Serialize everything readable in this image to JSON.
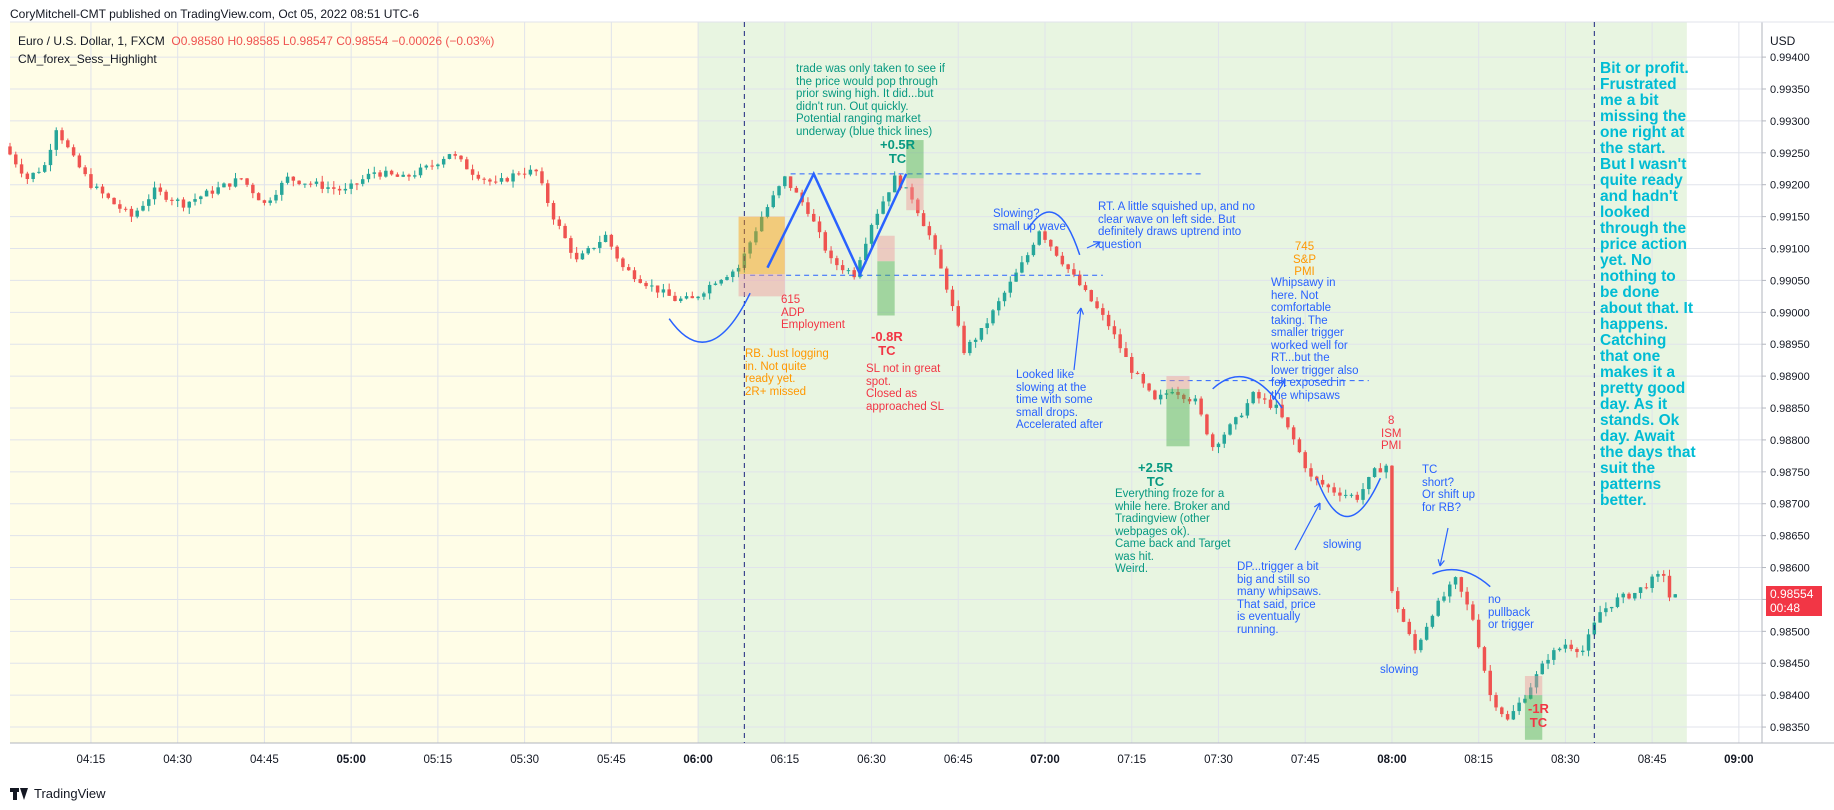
{
  "header": {
    "publisher_line": "CoryMitchell-CMT published on TradingView.com, Oct 05, 2022 08:51 UTC-6",
    "symbol_name": "Euro / U.S. Dollar, 1, FXCM",
    "open": "O0.98580",
    "high": "H0.98585",
    "low": "L0.98547",
    "close": "C0.98554",
    "change": "−0.00026 (−0.03%)",
    "indicator": "CM_forex_Sess_Highlight",
    "currency": "USD"
  },
  "footer": {
    "brand": "TradingView"
  },
  "price_tag": {
    "price": "0.98554",
    "countdown": "00:48"
  },
  "colors": {
    "session_asia": "#fffde7",
    "session_london_ny": "#e8f5e1",
    "up_candle": "#26a69a",
    "down_candle": "#ef5350",
    "drawing_blue": "#2962ff",
    "annotation_green": "#089981",
    "annotation_red": "#f23645",
    "annotation_orange": "#ff9800",
    "annotation_teal": "#00bcd4"
  },
  "chart_data": {
    "type": "candlestick",
    "title": "Euro / U.S. Dollar, 1, FXCM",
    "ylim": [
      0.98325,
      0.99455
    ],
    "y_ticks": [
      "0.99400",
      "0.99350",
      "0.99300",
      "0.99250",
      "0.99200",
      "0.99150",
      "0.99100",
      "0.99050",
      "0.99000",
      "0.98950",
      "0.98900",
      "0.98850",
      "0.98800",
      "0.98750",
      "0.98700",
      "0.98650",
      "0.98600",
      "0.98550",
      "0.98500",
      "0.98450",
      "0.98400",
      "0.98350"
    ],
    "x_ticks": [
      "04:15",
      "04:30",
      "04:45",
      "05:00",
      "05:15",
      "05:30",
      "05:45",
      "06:00",
      "06:15",
      "06:30",
      "06:45",
      "07:00",
      "07:15",
      "07:30",
      "07:45",
      "08:00",
      "08:15",
      "08:30",
      "08:45",
      "09:00"
    ],
    "x_major_ticks": [
      "05:00",
      "06:00",
      "07:00",
      "08:00",
      "09:00"
    ],
    "x_range": [
      "04:01",
      "09:04"
    ],
    "grid": true,
    "price_path": [
      [
        "04:01",
        0.9926
      ],
      [
        "04:05",
        0.9921
      ],
      [
        "04:08",
        0.9923
      ],
      [
        "04:10",
        0.9929
      ],
      [
        "04:13",
        0.9924
      ],
      [
        "04:16",
        0.992
      ],
      [
        "04:20",
        0.9917
      ],
      [
        "04:23",
        0.9915
      ],
      [
        "04:27",
        0.9919
      ],
      [
        "04:32",
        0.9917
      ],
      [
        "04:37",
        0.9919
      ],
      [
        "04:42",
        0.9921
      ],
      [
        "04:46",
        0.9917
      ],
      [
        "04:50",
        0.9921
      ],
      [
        "04:55",
        0.992
      ],
      [
        "05:00",
        0.9919
      ],
      [
        "05:05",
        0.9922
      ],
      [
        "05:10",
        0.9921
      ],
      [
        "05:15",
        0.9923
      ],
      [
        "05:18",
        0.9925
      ],
      [
        "05:22",
        0.9922
      ],
      [
        "05:26",
        0.992
      ],
      [
        "05:30",
        0.9922
      ],
      [
        "05:33",
        0.9922
      ],
      [
        "05:36",
        0.9915
      ],
      [
        "05:40",
        0.9908
      ],
      [
        "05:45",
        0.9912
      ],
      [
        "05:48",
        0.9907
      ],
      [
        "05:53",
        0.9904
      ],
      [
        "05:57",
        0.9902
      ],
      [
        "06:00",
        0.9902
      ],
      [
        "06:04",
        0.9905
      ],
      [
        "06:08",
        0.9907
      ],
      [
        "06:12",
        0.9915
      ],
      [
        "06:16",
        0.9921
      ],
      [
        "06:20",
        0.9916
      ],
      [
        "06:24",
        0.9908
      ],
      [
        "06:28",
        0.9906
      ],
      [
        "06:31",
        0.9914
      ],
      [
        "06:35",
        0.9921
      ],
      [
        "06:38",
        0.9918
      ],
      [
        "06:41",
        0.9912
      ],
      [
        "06:44",
        0.9904
      ],
      [
        "06:47",
        0.9894
      ],
      [
        "06:50",
        0.9897
      ],
      [
        "06:54",
        0.9903
      ],
      [
        "06:58",
        0.9909
      ],
      [
        "07:00",
        0.9913
      ],
      [
        "07:04",
        0.9908
      ],
      [
        "07:08",
        0.9903
      ],
      [
        "07:12",
        0.9898
      ],
      [
        "07:16",
        0.9891
      ],
      [
        "07:20",
        0.9886
      ],
      [
        "07:23",
        0.9888
      ],
      [
        "07:27",
        0.9886
      ],
      [
        "07:30",
        0.9879
      ],
      [
        "07:34",
        0.9883
      ],
      [
        "07:37",
        0.9887
      ],
      [
        "07:41",
        0.9885
      ],
      [
        "07:44",
        0.988
      ],
      [
        "07:47",
        0.9874
      ],
      [
        "07:51",
        0.9872
      ],
      [
        "07:55",
        0.9871
      ],
      [
        "07:58",
        0.9875
      ],
      [
        "08:00",
        0.9876
      ],
      [
        "08:01",
        0.9856
      ],
      [
        "08:05",
        0.9847
      ],
      [
        "08:08",
        0.9853
      ],
      [
        "08:12",
        0.9858
      ],
      [
        "08:15",
        0.9852
      ],
      [
        "08:18",
        0.984
      ],
      [
        "08:21",
        0.9836
      ],
      [
        "08:24",
        0.984
      ],
      [
        "08:28",
        0.9846
      ],
      [
        "08:31",
        0.9848
      ],
      [
        "08:34",
        0.9847
      ],
      [
        "08:37",
        0.9853
      ],
      [
        "08:40",
        0.9855
      ],
      [
        "08:43",
        0.9856
      ],
      [
        "08:46",
        0.9858
      ],
      [
        "08:48",
        0.9859
      ],
      [
        "08:49",
        0.98554
      ]
    ],
    "sessions": [
      {
        "name": "asia",
        "from": "04:01",
        "to": "06:00"
      },
      {
        "name": "london_ny",
        "from": "06:00",
        "to": "08:51"
      }
    ],
    "vertical_lines": [
      "06:08",
      "08:35"
    ],
    "horizontal_levels": [
      {
        "price": 0.99217,
        "from": "06:16",
        "to": "07:27"
      },
      {
        "price": 0.99058,
        "from": "06:09",
        "to": "07:10"
      },
      {
        "price": 0.98893,
        "from": "07:20",
        "to": "07:56"
      }
    ],
    "markers": [
      {
        "label": "+0.5R\nTC",
        "color": "green",
        "time": "06:35",
        "price": 0.99275
      },
      {
        "label": "-0.8R\nTC",
        "color": "red",
        "time": "06:33",
        "price": 0.98935
      },
      {
        "label": "+2.5R\nTC",
        "color": "green",
        "time": "07:19",
        "price": 0.98752
      },
      {
        "label": "-1R\nTC",
        "color": "red",
        "time": "08:25",
        "price": 0.98365
      }
    ],
    "event_labels": [
      {
        "text": "615\nADP\nEmployment",
        "color": "red",
        "time": "06:15",
        "price": 0.9899
      },
      {
        "text": "745\nS&P\nPMI",
        "color": "orange",
        "time": "07:45",
        "price": 0.99105
      },
      {
        "text": "8\nISM\nPMI",
        "color": "red",
        "time": "07:59",
        "price": 0.9883
      }
    ],
    "annotations": [
      {
        "text": "trade was only taken to see if\nthe price would pop through\nprior swing high. It did...but\ndidn't run. Out quickly.\nPotential ranging market\nunderway (blue thick lines)",
        "color": "green"
      },
      {
        "text": "RB. Just logging\nin. Not quite\nready yet.\n2R+ missed",
        "color": "orange"
      },
      {
        "text": "SL not in great\nspot.\nClosed as\napproached SL",
        "color": "red"
      },
      {
        "text": "Slowing?\nsmall up wave",
        "color": "blue"
      },
      {
        "text": "RT. A little squished up, and no\nclear wave on left side. But\ndefinitely draws uptrend into\nquestion",
        "color": "blue"
      },
      {
        "text": "Looked like\nslowing at the\ntime with some\nsmall drops.\nAccelerated after",
        "color": "blue"
      },
      {
        "text": "Whipsawy in\nhere. Not\ncomfortable\ntaking. The\nsmaller trigger\nworked well for\nRT...but the\nlower trigger also\nfelt exposed in\nthe whipsaws",
        "color": "blue"
      },
      {
        "text": "Everything froze for a\nwhile here. Broker and\nTradingview (other\nwebpages ok).\nCame back and Target\nwas hit.\nWeird.",
        "color": "green"
      },
      {
        "text": "slowing",
        "color": "blue"
      },
      {
        "text": "DP...trigger a bit\nbig and still so\nmany whipsaws.\nThat said, price\nis eventually\nrunning.",
        "color": "blue"
      },
      {
        "text": "TC\nshort?\nOr shift up\nfor RB?",
        "color": "blue"
      },
      {
        "text": "no\npullback\nor trigger",
        "color": "blue"
      },
      {
        "text": "slowing",
        "color": "blue"
      },
      {
        "text": "Bit or profit.\nFrustrated\nme a bit\nmissing the\none right at\nthe start.\nBut I wasn't\nquite ready\nand hadn't\nlooked\nthrough the\nprice action\nyet. No\nnothing to\nbe done\nabout that. It\nhappens.\nCatching\nthat one\nmakes it a\npretty good\nday. As it\nstands. Ok\nday. Await\nthe days that\nsuit the\npatterns\nbetter.",
        "color": "teal"
      }
    ]
  }
}
